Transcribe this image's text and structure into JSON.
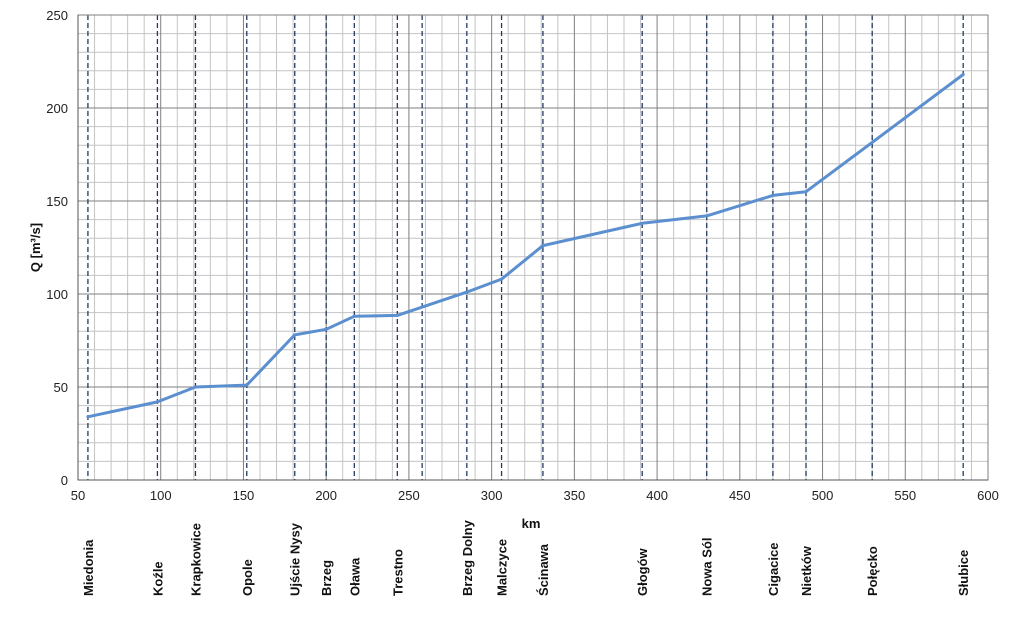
{
  "chart_data": {
    "type": "line",
    "title": "",
    "xlabel": "km",
    "ylabel": "Q [m³/s]",
    "xlim": [
      50,
      600
    ],
    "ylim": [
      0,
      250
    ],
    "x_ticks": [
      50,
      100,
      150,
      200,
      250,
      300,
      350,
      400,
      450,
      500,
      550,
      600
    ],
    "y_ticks": [
      0,
      50,
      100,
      150,
      200,
      250
    ],
    "minor_x_step": 10,
    "minor_y_step": 10,
    "grid": true,
    "colors": {
      "line": "#5b8fd0",
      "marker_line": "#1f3b64",
      "grid_major": "#7f7f7f",
      "grid_minor": "#c4c4c4"
    },
    "series": [
      {
        "x": [
          56,
          98,
          121,
          152,
          181,
          200,
          217,
          243,
          285,
          306,
          331,
          391,
          430,
          470,
          490,
          585
        ],
        "y": [
          34,
          42,
          50,
          51,
          78,
          81,
          88,
          88.5,
          101,
          108,
          126,
          138,
          142,
          153,
          155,
          218
        ]
      }
    ],
    "stations": [
      {
        "name": "Miedonia",
        "km": 56
      },
      {
        "name": "Koźle",
        "km": 98
      },
      {
        "name": "Krapkowice",
        "km": 121
      },
      {
        "name": "Opole",
        "km": 152
      },
      {
        "name": "Ujście Nysy",
        "km": 181
      },
      {
        "name": "Brzeg",
        "km": 200
      },
      {
        "name": "Oława",
        "km": 217
      },
      {
        "name": "Trestno",
        "km": 243
      },
      {
        "name": "",
        "km": 258
      },
      {
        "name": "Brzeg Dolny",
        "km": 285
      },
      {
        "name": "Malczyce",
        "km": 306
      },
      {
        "name": "Ścinawa",
        "km": 331
      },
      {
        "name": "Głogów",
        "km": 391
      },
      {
        "name": "Nowa  Sól",
        "km": 430
      },
      {
        "name": "Cigacice",
        "km": 470
      },
      {
        "name": "Nietków",
        "km": 490
      },
      {
        "name": "Połęcko",
        "km": 530
      },
      {
        "name": "Słubice",
        "km": 585
      }
    ]
  }
}
